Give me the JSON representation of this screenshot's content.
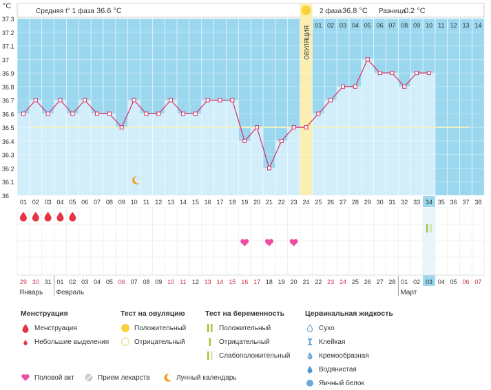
{
  "chart_data": {
    "type": "line",
    "title": "",
    "ylabel": "°C",
    "ylim": [
      36,
      37.3
    ],
    "ytick_labels": [
      "37.3",
      "37.2",
      "37.1",
      "37",
      "36.9",
      "36.8",
      "36.7",
      "36.6",
      "36.5",
      "36.4",
      "36.3",
      "36.2",
      "36.1",
      "36"
    ],
    "cycle_days": [
      "01",
      "02",
      "03",
      "04",
      "05",
      "06",
      "07",
      "08",
      "09",
      "10",
      "11",
      "12",
      "13",
      "14",
      "15",
      "16",
      "17",
      "18",
      "19",
      "20",
      "21",
      "22",
      "23",
      "24",
      "25",
      "26",
      "27",
      "28",
      "29",
      "30",
      "31",
      "32",
      "33",
      "34",
      "35",
      "36",
      "37",
      "38"
    ],
    "temperatures": [
      36.6,
      36.7,
      36.6,
      36.7,
      36.6,
      36.7,
      36.6,
      36.6,
      36.5,
      36.7,
      36.6,
      36.6,
      36.7,
      36.6,
      36.6,
      36.7,
      36.7,
      36.7,
      36.4,
      36.5,
      36.2,
      36.4,
      36.5,
      36.5,
      36.6,
      36.7,
      36.8,
      36.8,
      37.0,
      36.9,
      36.9,
      36.8,
      36.9,
      36.9
    ],
    "coverline": 36.5,
    "ovulation_day": 24,
    "ovulation_label": "ОВУЛЯЦИЯ",
    "current_day": 34,
    "phase2_day_labels": [
      "01",
      "02",
      "03",
      "04",
      "05",
      "06",
      "07",
      "08",
      "09",
      "10",
      "11",
      "12",
      "13",
      "14"
    ],
    "phase1_avg_label": "Средняя t° 1 фаза",
    "phase1_avg_value": "36.6 °C",
    "phase2_label": "2 фаза",
    "phase2_value": "36.8 °C",
    "diff_label": "Разница",
    "diff_value": "0.2 °C",
    "dates": [
      "29",
      "30",
      "31",
      "01",
      "02",
      "03",
      "04",
      "05",
      "06",
      "07",
      "08",
      "09",
      "10",
      "11",
      "12",
      "13",
      "14",
      "15",
      "16",
      "17",
      "18",
      "19",
      "20",
      "21",
      "22",
      "23",
      "24",
      "25",
      "26",
      "27",
      "28",
      "01",
      "02",
      "03",
      "04",
      "05",
      "06",
      "07"
    ],
    "red_date_indices": [
      0,
      1,
      8,
      12,
      13,
      15,
      16,
      17,
      18,
      19,
      25,
      26,
      36,
      37
    ],
    "months": [
      {
        "label": "Январь",
        "start_index": 0
      },
      {
        "label": "Февраль",
        "start_index": 3
      },
      {
        "label": "Март",
        "start_index": 31
      }
    ],
    "menstruation_days": [
      1,
      2,
      3,
      4,
      5
    ],
    "moon_day": 10,
    "intercourse_days": [
      19,
      21,
      23
    ],
    "pregnancy_test_day": 34
  },
  "legend": {
    "menstruation": {
      "title": "Менструация",
      "items": [
        "Менструация",
        "Небольшие выделения"
      ]
    },
    "ovulation_test": {
      "title": "Тест на овуляцию",
      "items": [
        "Положительный",
        "Отрицательный"
      ]
    },
    "pregnancy_test": {
      "title": "Тест на беременность",
      "items": [
        "Положительный",
        "Отрицательный",
        "Слабоположительный"
      ]
    },
    "cervical": {
      "title": "Цервикальная жидкость",
      "items": [
        "Сухо",
        "Клейкая",
        "Кремообразная",
        "Водянистая",
        "Яичный белок"
      ]
    },
    "bottom": [
      "Половой акт",
      "Прием лекарств",
      "Лунный календарь"
    ]
  },
  "colors": {
    "sky": "#9bd8ef",
    "bar": "#d2eefb",
    "line": "#d92b5f",
    "ovulation": "#faeeb0",
    "sun": "#f9d33a",
    "coverline": "#f0f2c4",
    "blood": "#e63345",
    "heart": "#ec4ea3",
    "test": "#a0c43a",
    "red_date": "#c8324a",
    "highlight": "#9bd8ef",
    "moon": "#f0a020"
  }
}
